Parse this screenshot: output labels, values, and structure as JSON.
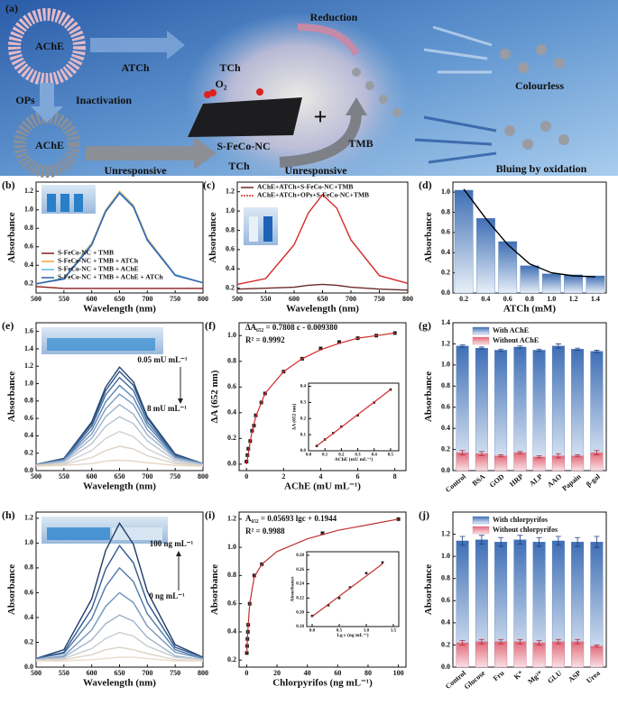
{
  "diagram": {
    "panel": "(a)",
    "labels": [
      "AChE",
      "ATCh",
      "TCh",
      "Reduction",
      "OPs",
      "Inactivation",
      "O₂",
      "S-FeCo-NC",
      "TMB",
      "Colourless",
      "AChE",
      "Unresponsive",
      "TCh",
      "Unresponsive",
      "Bluing by oxidation"
    ]
  },
  "chart_data": [
    {
      "type": "line",
      "panel": "(b)",
      "xlabel": "Wavelength (nm)",
      "ylabel": "Absorbance",
      "x": [
        500,
        550,
        600,
        625,
        650,
        675,
        700,
        750,
        800
      ],
      "xlim": [
        500,
        800
      ],
      "xticks": [
        500,
        550,
        600,
        650,
        700,
        750,
        800
      ],
      "ylim": [
        0.1,
        1.3
      ],
      "yticks": [
        0.2,
        0.4,
        0.6,
        0.8,
        {
          "value": 1,
          "label": "1.0"
        },
        1.2
      ],
      "legend": "lower-left",
      "series": [
        {
          "name": "S-FeCo-NC + TMB",
          "color": "#8b1a1a",
          "values": [
            0.17,
            0.15,
            0.15,
            0.15,
            0.15,
            0.15,
            0.15,
            0.15,
            0.15
          ]
        },
        {
          "name": "S-FeCo-NC + TMB + ATCh",
          "color": "#f0a040",
          "values": [
            0.2,
            0.26,
            0.64,
            1.0,
            1.2,
            1.05,
            0.69,
            0.3,
            0.21
          ]
        },
        {
          "name": "S-FeCo-NC + TMB + AChE",
          "color": "#5fb7e6",
          "values": [
            0.2,
            0.26,
            0.63,
            0.99,
            1.19,
            1.04,
            0.68,
            0.3,
            0.21
          ]
        },
        {
          "name": "S-FeCo-NC + TMB + AChE + ATCh",
          "color": "#2f5fa8",
          "values": [
            0.2,
            0.25,
            0.62,
            0.98,
            1.18,
            1.03,
            0.67,
            0.29,
            0.21
          ]
        }
      ]
    },
    {
      "type": "line",
      "panel": "(c)",
      "xlabel": "Wavelength (nm)",
      "ylabel": "Absorbance",
      "x": [
        500,
        550,
        600,
        625,
        650,
        675,
        700,
        750,
        800
      ],
      "xlim": [
        500,
        800
      ],
      "xticks": [
        500,
        550,
        600,
        650,
        700,
        750,
        800
      ],
      "ylim": [
        0.15,
        1.3
      ],
      "yticks": [
        0.2,
        0.4,
        0.6,
        0.8,
        {
          "value": 1,
          "label": "1.0"
        },
        1.2
      ],
      "legend": "upper-left",
      "series": [
        {
          "name": "AChE+ATCh+S-FeCo-NC+TMB",
          "color": "#6b2a2a",
          "values": [
            0.19,
            0.2,
            0.21,
            0.23,
            0.24,
            0.23,
            0.21,
            0.19,
            0.18
          ]
        },
        {
          "name": "AChE+ATCh+OPs+S-FeCo-NC+TMB",
          "color": "#d42a2a",
          "values": [
            0.24,
            0.3,
            0.65,
            0.98,
            1.17,
            1.03,
            0.7,
            0.33,
            0.25
          ]
        }
      ]
    },
    {
      "type": "bar",
      "panel": "(d)",
      "xlabel": "ATCh (mM)",
      "ylabel": "Absorbance",
      "categories": [
        "0.2",
        "0.4",
        "0.6",
        "0.8",
        "1.0",
        "1.2",
        "1.4"
      ],
      "values": [
        1.02,
        0.74,
        0.51,
        0.27,
        0.19,
        0.18,
        0.17
      ],
      "fit_values": [
        1.03,
        0.74,
        0.48,
        0.29,
        0.2,
        0.17,
        0.16
      ],
      "color": "#3f6fb5",
      "ylim": [
        0,
        1.1
      ],
      "yticks": [
        {
          "value": 0,
          "label": "0.0"
        },
        0.2,
        0.4,
        0.6,
        0.8,
        {
          "value": 1,
          "label": "1.0"
        }
      ]
    },
    {
      "type": "line",
      "panel": "(e)",
      "xlabel": "Wavelength (nm)",
      "ylabel": "Absorbance",
      "annotations": [
        "0.05 mU mL⁻¹",
        "8 mU mL⁻¹"
      ],
      "x": [
        500,
        550,
        600,
        625,
        650,
        675,
        700,
        750,
        800
      ],
      "xlim": [
        500,
        800
      ],
      "xticks": [
        500,
        550,
        600,
        650,
        700,
        750,
        800
      ],
      "ylim": [
        0,
        1.7
      ],
      "yticks": [
        {
          "value": 0,
          "label": "0.0"
        },
        0.2,
        0.4,
        0.6,
        0.8,
        {
          "value": 1,
          "label": "1.0"
        },
        1.2,
        1.4,
        1.6
      ],
      "series": [
        {
          "color": "#22406a",
          "values": [
            0.07,
            0.14,
            0.56,
            0.96,
            1.19,
            1.02,
            0.62,
            0.19,
            0.08
          ]
        },
        {
          "color": "#2f5585",
          "values": [
            0.07,
            0.14,
            0.54,
            0.92,
            1.14,
            0.98,
            0.6,
            0.18,
            0.08
          ]
        },
        {
          "color": "#3f6a9c",
          "values": [
            0.07,
            0.13,
            0.51,
            0.87,
            1.07,
            0.92,
            0.56,
            0.17,
            0.08
          ]
        },
        {
          "color": "#5a83b0",
          "values": [
            0.07,
            0.12,
            0.47,
            0.79,
            0.98,
            0.84,
            0.52,
            0.16,
            0.08
          ]
        },
        {
          "color": "#7a9bc0",
          "values": [
            0.07,
            0.12,
            0.42,
            0.71,
            0.88,
            0.76,
            0.47,
            0.15,
            0.08
          ]
        },
        {
          "color": "#9bb2cc",
          "values": [
            0.06,
            0.11,
            0.37,
            0.62,
            0.76,
            0.65,
            0.41,
            0.14,
            0.07
          ]
        },
        {
          "color": "#b7c3d2",
          "values": [
            0.06,
            0.1,
            0.31,
            0.51,
            0.62,
            0.54,
            0.34,
            0.12,
            0.07
          ]
        },
        {
          "color": "#cfcfd3",
          "values": [
            0.06,
            0.08,
            0.23,
            0.37,
            0.45,
            0.39,
            0.25,
            0.1,
            0.06
          ]
        },
        {
          "color": "#dcd2c8",
          "values": [
            0.06,
            0.07,
            0.15,
            0.23,
            0.28,
            0.25,
            0.17,
            0.08,
            0.06
          ]
        },
        {
          "color": "#e6d6c4",
          "values": [
            0.05,
            0.06,
            0.08,
            0.11,
            0.12,
            0.11,
            0.09,
            0.06,
            0.05
          ]
        }
      ]
    },
    {
      "type": "scatter",
      "panel": "(f)",
      "xlabel": "AChE (mU mL⁻¹)",
      "ylabel": "ΔA (652 nm)",
      "color": "#222222",
      "fit_color": "#d42a2a",
      "annotations": [
        "ΔA₆₅₂ = 0.7808 c - 0.009380",
        "R² = 0.9992"
      ],
      "x": [
        0,
        0.05,
        0.1,
        0.2,
        0.3,
        0.4,
        0.5,
        0.8,
        1,
        2,
        3,
        4,
        5,
        6,
        7,
        8
      ],
      "values": [
        0.02,
        0.07,
        0.12,
        0.18,
        0.26,
        0.3,
        0.38,
        0.48,
        0.55,
        0.72,
        0.82,
        0.9,
        0.95,
        0.98,
        1.0,
        1.02
      ],
      "fit": {
        "x": [
          0,
          0.25,
          0.5,
          1,
          2,
          3,
          4,
          5,
          6,
          7,
          8
        ],
        "values": [
          0.0,
          0.22,
          0.37,
          0.55,
          0.72,
          0.82,
          0.89,
          0.94,
          0.98,
          1.0,
          1.02
        ]
      },
      "xlim": [
        -0.4,
        8.6
      ],
      "xticks": [
        0,
        2,
        4,
        6,
        8
      ],
      "ylim": [
        -0.05,
        1.1
      ],
      "yticks": [
        {
          "value": 0,
          "label": "0.0"
        },
        0.2,
        0.4,
        0.6,
        0.8,
        {
          "value": 1,
          "label": "1.0"
        }
      ],
      "inset": {
        "xlabel": "AChE (mU mL⁻¹)",
        "ylabel": "ΔA (652 nm)",
        "x": [
          0.05,
          0.1,
          0.15,
          0.2,
          0.3,
          0.4,
          0.5
        ],
        "values": [
          0.03,
          0.07,
          0.11,
          0.15,
          0.22,
          0.3,
          0.38
        ],
        "fit": {
          "x": [
            0.05,
            0.5
          ],
          "values": [
            0.03,
            0.38
          ]
        },
        "xlim": [
          0,
          0.55
        ],
        "xticks": [
          {
            "value": 0,
            "label": "0.0"
          },
          0.1,
          0.2,
          0.3,
          0.4,
          0.5
        ],
        "ylim": [
          0,
          0.42
        ],
        "yticks": [
          {
            "value": 0,
            "label": "0.0"
          },
          0.1,
          0.2,
          0.3,
          0.4
        ]
      }
    },
    {
      "type": "bar",
      "panel": "(g)",
      "ylabel": "Absorbance",
      "legend": "upper-center",
      "categories": [
        "Control",
        "BSA",
        "GOD",
        "HRP",
        "ALP",
        "AAO",
        "Papain",
        "β-gal"
      ],
      "ylim": [
        0,
        1.4
      ],
      "yticks": [
        {
          "value": 0,
          "label": "0.0"
        },
        0.2,
        0.4,
        0.6,
        0.8,
        {
          "value": 1,
          "label": "1.0"
        },
        1.2,
        1.4
      ],
      "series": [
        {
          "name": "With AChE",
          "color": "#3f6fb5",
          "values": [
            1.18,
            1.16,
            1.14,
            1.17,
            1.14,
            1.18,
            1.15,
            1.13
          ],
          "errors": [
            0.01,
            0.01,
            0.01,
            0.01,
            0.01,
            0.02,
            0.01,
            0.01
          ]
        },
        {
          "name": "Without AChE",
          "color": "#e26a7a",
          "values": [
            0.17,
            0.16,
            0.14,
            0.17,
            0.13,
            0.14,
            0.14,
            0.17
          ],
          "errors": [
            0.02,
            0.02,
            0.01,
            0.01,
            0.01,
            0.02,
            0.01,
            0.02
          ]
        }
      ]
    },
    {
      "type": "line",
      "panel": "(h)",
      "xlabel": "Wavelength (nm)",
      "ylabel": "Absorbance",
      "annotations": [
        "100 ng mL⁻¹",
        "0 ng mL⁻¹"
      ],
      "x": [
        500,
        550,
        600,
        625,
        650,
        675,
        700,
        750,
        800
      ],
      "xlim": [
        500,
        800
      ],
      "xticks": [
        500,
        550,
        600,
        650,
        700,
        750,
        800
      ],
      "ylim": [
        0,
        1.25
      ],
      "yticks": [
        {
          "value": 0,
          "label": "0.0"
        },
        0.2,
        0.4,
        0.6,
        0.8,
        {
          "value": 1,
          "label": "1.0"
        },
        1.2
      ],
      "series": [
        {
          "color": "#1f3b66",
          "values": [
            0.07,
            0.14,
            0.55,
            0.94,
            1.16,
            0.99,
            0.61,
            0.18,
            0.08
          ]
        },
        {
          "color": "#2f5a8f",
          "values": [
            0.07,
            0.12,
            0.47,
            0.79,
            0.98,
            0.84,
            0.52,
            0.16,
            0.08
          ]
        },
        {
          "color": "#4f79a8",
          "values": [
            0.07,
            0.11,
            0.39,
            0.65,
            0.8,
            0.69,
            0.43,
            0.14,
            0.07
          ]
        },
        {
          "color": "#7195bd",
          "values": [
            0.06,
            0.09,
            0.3,
            0.49,
            0.6,
            0.52,
            0.33,
            0.12,
            0.07
          ]
        },
        {
          "color": "#9fb3cc",
          "values": [
            0.06,
            0.08,
            0.22,
            0.35,
            0.42,
            0.37,
            0.24,
            0.09,
            0.06
          ]
        },
        {
          "color": "#c6cbd3",
          "values": [
            0.06,
            0.07,
            0.15,
            0.23,
            0.28,
            0.25,
            0.17,
            0.08,
            0.06
          ]
        },
        {
          "color": "#ded3c6",
          "values": [
            0.05,
            0.06,
            0.1,
            0.14,
            0.16,
            0.14,
            0.11,
            0.06,
            0.05
          ]
        },
        {
          "color": "#ecdcc8",
          "values": [
            0.05,
            0.05,
            0.06,
            0.07,
            0.08,
            0.08,
            0.07,
            0.05,
            0.05
          ]
        }
      ]
    },
    {
      "type": "scatter",
      "panel": "(i)",
      "xlabel": "Chlorpyrifos (ng mL⁻¹)",
      "ylabel": "Absorbance",
      "color": "#222222",
      "fit_color": "#c03030",
      "annotations": [
        "A₆₅₂ = 0.05693 lgc + 0.1944",
        "R² = 0.9988"
      ],
      "x": [
        0.1,
        0.3,
        0.5,
        0.8,
        1,
        2,
        5,
        10,
        50,
        100
      ],
      "values": [
        0.25,
        0.3,
        0.35,
        0.4,
        0.45,
        0.6,
        0.8,
        0.88,
        1.1,
        1.2
      ],
      "fit": {
        "x": [
          0.1,
          0.5,
          1,
          2,
          5,
          10,
          20,
          40,
          60,
          80,
          100
        ],
        "values": [
          0.25,
          0.36,
          0.45,
          0.6,
          0.79,
          0.88,
          0.97,
          1.06,
          1.12,
          1.16,
          1.2
        ]
      },
      "xlim": [
        -5,
        105
      ],
      "xticks": [
        0,
        20,
        40,
        60,
        80,
        100
      ],
      "ylim": [
        0.15,
        1.25
      ],
      "yticks": [
        0.2,
        0.4,
        0.6,
        0.8,
        {
          "value": 1,
          "label": "1.0"
        },
        1.2
      ],
      "inset": {
        "xlabel": "Lg c (ng mL⁻¹)",
        "ylabel": "Absorbance",
        "x": [
          0,
          0.3,
          0.5,
          0.7,
          1.0,
          1.3
        ],
        "values": [
          0.195,
          0.21,
          0.22,
          0.235,
          0.255,
          0.27
        ],
        "fit": {
          "x": [
            0,
            1.3
          ],
          "values": [
            0.194,
            0.268
          ]
        },
        "xlim": [
          -0.1,
          1.6
        ],
        "xticks": [
          {
            "value": 0,
            "label": "0.0"
          },
          0.5,
          {
            "value": 1,
            "label": "1.0"
          },
          1.5
        ],
        "ylim": [
          0.18,
          0.285
        ],
        "yticks": [
          0.18,
          {
            "value": 0.2,
            "label": "0.20"
          },
          0.22,
          0.24,
          0.26,
          0.28
        ]
      }
    },
    {
      "type": "bar",
      "panel": "(j)",
      "ylabel": "Absorbance",
      "legend": "upper-center",
      "categories": [
        "Control",
        "Glucose",
        "Fru",
        "K⁺",
        "Mg²⁺",
        "GLU",
        "ASP",
        "Urea"
      ],
      "ylim": [
        0,
        1.4
      ],
      "yticks": [
        {
          "value": 0,
          "label": "0.0"
        },
        0.2,
        0.4,
        0.6,
        0.8,
        {
          "value": 1,
          "label": "1.0"
        },
        1.2
      ],
      "series": [
        {
          "name": "With chlorpyrifos",
          "color": "#3f6fb5",
          "values": [
            1.14,
            1.15,
            1.13,
            1.15,
            1.13,
            1.14,
            1.13,
            1.13
          ],
          "errors": [
            0.04,
            0.04,
            0.04,
            0.04,
            0.04,
            0.04,
            0.04,
            0.05
          ]
        },
        {
          "name": "Without chlorpyrifos",
          "color": "#e26a7a",
          "values": [
            0.22,
            0.23,
            0.23,
            0.23,
            0.22,
            0.23,
            0.23,
            0.19
          ],
          "errors": [
            0.02,
            0.02,
            0.02,
            0.02,
            0.02,
            0.02,
            0.02,
            0.01
          ]
        }
      ]
    }
  ]
}
